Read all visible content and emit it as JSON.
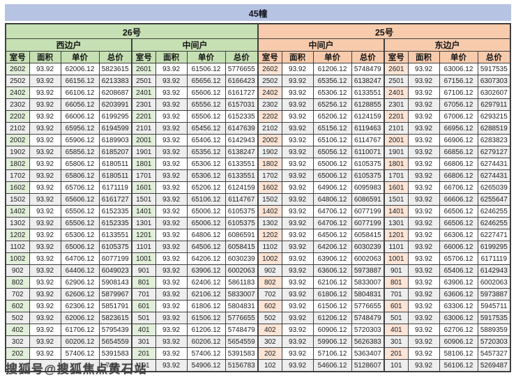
{
  "title": "45幢",
  "sections": [
    {
      "label": "26号",
      "color": "#c6e0b4",
      "room_cell_color": "#e2efda"
    },
    {
      "label": "25号",
      "color": "#f8cbad",
      "room_cell_color": "#fce4d6"
    }
  ],
  "subheaders": [
    {
      "label": "西边户",
      "section": "26号"
    },
    {
      "label": "中间户",
      "section": "26号"
    },
    {
      "label": "中间户",
      "section": "25号"
    },
    {
      "label": "东边户",
      "section": "25号"
    }
  ],
  "column_headers": [
    "室号",
    "面积",
    "单价",
    "总价"
  ],
  "watermark": "搜狐号@搜狐焦点黄石站",
  "title_bar_color": "#b7c3e3",
  "stripe_color": "#eeeeee",
  "rows": [
    [
      [
        "2602",
        "93.92",
        "62006.12",
        "5823615"
      ],
      [
        "2601",
        "93.92",
        "61506.12",
        "5776655"
      ],
      [
        "2602",
        "93.92",
        "61206.12",
        "5748479"
      ],
      [
        "2601",
        "93.92",
        "63006.12",
        "5917535"
      ]
    ],
    [
      [
        "2502",
        "93.92",
        "66156.12",
        "6213383"
      ],
      [
        "2501",
        "93.92",
        "65656.12",
        "6166423"
      ],
      [
        "2502",
        "93.92",
        "65356.12",
        "6138247"
      ],
      [
        "2501",
        "93.92",
        "67156.12",
        "6307303"
      ]
    ],
    [
      [
        "2402",
        "93.92",
        "66106.12",
        "6208687"
      ],
      [
        "2401",
        "93.92",
        "65606.12",
        "6161727"
      ],
      [
        "2402",
        "93.92",
        "65306.12",
        "6133551"
      ],
      [
        "2401",
        "93.92",
        "67106.12",
        "6302607"
      ]
    ],
    [
      [
        "2302",
        "93.92",
        "66056.12",
        "6203991"
      ],
      [
        "2301",
        "93.92",
        "65556.12",
        "6157031"
      ],
      [
        "2302",
        "93.92",
        "65256.12",
        "6128855"
      ],
      [
        "2301",
        "93.92",
        "67056.12",
        "6297911"
      ]
    ],
    [
      [
        "2202",
        "93.92",
        "66006.12",
        "6199295"
      ],
      [
        "2201",
        "93.92",
        "65506.12",
        "6152335"
      ],
      [
        "2202",
        "93.92",
        "65206.12",
        "6124159"
      ],
      [
        "2201",
        "93.92",
        "67006.12",
        "6293215"
      ]
    ],
    [
      [
        "2102",
        "93.92",
        "65956.12",
        "6194599"
      ],
      [
        "2101",
        "93.92",
        "65456.12",
        "6147639"
      ],
      [
        "2102",
        "93.92",
        "65156.12",
        "6119463"
      ],
      [
        "2101",
        "93.92",
        "66956.12",
        "6288519"
      ]
    ],
    [
      [
        "2002",
        "93.92",
        "65906.12",
        "6189903"
      ],
      [
        "2001",
        "93.92",
        "65406.12",
        "6142943"
      ],
      [
        "2002",
        "93.92",
        "65106.12",
        "6114767"
      ],
      [
        "2001",
        "93.92",
        "66906.12",
        "6283823"
      ]
    ],
    [
      [
        "1902",
        "93.92",
        "65856.12",
        "6185207"
      ],
      [
        "1901",
        "93.92",
        "65356.12",
        "6138247"
      ],
      [
        "1902",
        "93.92",
        "65056.12",
        "6110071"
      ],
      [
        "1901",
        "93.92",
        "66856.12",
        "6279127"
      ]
    ],
    [
      [
        "1802",
        "93.92",
        "65806.12",
        "6180511"
      ],
      [
        "1801",
        "93.92",
        "65306.12",
        "6133551"
      ],
      [
        "1802",
        "93.92",
        "65006.12",
        "6105375"
      ],
      [
        "1801",
        "93.92",
        "66806.12",
        "6274431"
      ]
    ],
    [
      [
        "1702",
        "93.92",
        "65806.12",
        "6180511"
      ],
      [
        "1701",
        "93.92",
        "65306.12",
        "6133551"
      ],
      [
        "1702",
        "93.92",
        "65006.12",
        "6105375"
      ],
      [
        "1701",
        "93.92",
        "66806.12",
        "6274431"
      ]
    ],
    [
      [
        "1602",
        "93.92",
        "65706.12",
        "6171119"
      ],
      [
        "1601",
        "93.92",
        "65206.12",
        "6124159"
      ],
      [
        "1602",
        "93.92",
        "64906.12",
        "6095983"
      ],
      [
        "1601",
        "93.92",
        "66706.12",
        "6265039"
      ]
    ],
    [
      [
        "1502",
        "93.92",
        "65606.12",
        "6161727"
      ],
      [
        "1501",
        "93.92",
        "65106.12",
        "6114767"
      ],
      [
        "1502",
        "93.92",
        "64806.12",
        "6086591"
      ],
      [
        "1501",
        "93.92",
        "66606.12",
        "6255647"
      ]
    ],
    [
      [
        "1402",
        "93.92",
        "65506.12",
        "6152335"
      ],
      [
        "1401",
        "93.92",
        "65006.12",
        "6105375"
      ],
      [
        "1402",
        "93.92",
        "64706.12",
        "6077199"
      ],
      [
        "1401",
        "93.92",
        "66506.12",
        "6246255"
      ]
    ],
    [
      [
        "1302",
        "93.92",
        "65506.12",
        "6152335"
      ],
      [
        "1301",
        "93.92",
        "65006.12",
        "6105375"
      ],
      [
        "1302",
        "93.92",
        "64706.12",
        "6077199"
      ],
      [
        "1301",
        "93.92",
        "66506.12",
        "6246255"
      ]
    ],
    [
      [
        "1202",
        "93.92",
        "65306.12",
        "6133551"
      ],
      [
        "1201",
        "93.92",
        "64806.12",
        "6086591"
      ],
      [
        "1202",
        "93.92",
        "64506.12",
        "6058415"
      ],
      [
        "1201",
        "93.92",
        "66306.12",
        "6227471"
      ]
    ],
    [
      [
        "1102",
        "93.92",
        "65006.12",
        "6105375"
      ],
      [
        "1101",
        "93.92",
        "64506.12",
        "6058415"
      ],
      [
        "1102",
        "93.92",
        "64206.12",
        "6030239"
      ],
      [
        "1101",
        "93.92",
        "66006.12",
        "6199295"
      ]
    ],
    [
      [
        "1002",
        "93.92",
        "64706.12",
        "6077199"
      ],
      [
        "1001",
        "93.92",
        "64206.12",
        "6030239"
      ],
      [
        "1002",
        "93.92",
        "63906.12",
        "6002063"
      ],
      [
        "1001",
        "93.92",
        "65706.12",
        "6171119"
      ]
    ],
    [
      [
        "902",
        "93.92",
        "64406.12",
        "6049023"
      ],
      [
        "901",
        "93.92",
        "63906.12",
        "6002063"
      ],
      [
        "902",
        "93.92",
        "63606.12",
        "5973887"
      ],
      [
        "901",
        "93.92",
        "65406.12",
        "6142943"
      ]
    ],
    [
      [
        "802",
        "93.92",
        "62906.12",
        "5908143"
      ],
      [
        "801",
        "93.92",
        "62406.12",
        "5861183"
      ],
      [
        "802",
        "93.92",
        "62106.12",
        "5833007"
      ],
      [
        "801",
        "93.92",
        "63906.12",
        "6002063"
      ]
    ],
    [
      [
        "702",
        "93.92",
        "62606.12",
        "5879967"
      ],
      [
        "701",
        "93.92",
        "62106.12",
        "5833007"
      ],
      [
        "702",
        "93.92",
        "61806.12",
        "5804831"
      ],
      [
        "701",
        "93.92",
        "63606.12",
        "5973887"
      ]
    ],
    [
      [
        "602",
        "93.92",
        "62306.12",
        "5851791"
      ],
      [
        "601",
        "93.92",
        "61806.12",
        "5804831"
      ],
      [
        "602",
        "93.92",
        "61506.12",
        "5776655"
      ],
      [
        "601",
        "93.92",
        "63306.12",
        "5945711"
      ]
    ],
    [
      [
        "502",
        "93.92",
        "62006.12",
        "5823615"
      ],
      [
        "501",
        "93.92",
        "61506.12",
        "5776655"
      ],
      [
        "502",
        "93.92",
        "61206.12",
        "5748479"
      ],
      [
        "501",
        "93.92",
        "63006.12",
        "5917535"
      ]
    ],
    [
      [
        "402",
        "93.92",
        "61706.12",
        "5795439"
      ],
      [
        "401",
        "93.92",
        "61206.12",
        "5748479"
      ],
      [
        "402",
        "93.92",
        "60906.12",
        "5720303"
      ],
      [
        "401",
        "93.92",
        "62706.12",
        "5889359"
      ]
    ],
    [
      [
        "302",
        "93.92",
        "60206.12",
        "5654559"
      ],
      [
        "301",
        "93.92",
        "60206.12",
        "5654559"
      ],
      [
        "302",
        "93.92",
        "59906.12",
        "5626383"
      ],
      [
        "301",
        "93.92",
        "60906.12",
        "5720303"
      ]
    ],
    [
      [
        "202",
        "93.92",
        "57406.12",
        "5391583"
      ],
      [
        "201",
        "93.92",
        "57406.12",
        "5391583"
      ],
      [
        "202",
        "93.92",
        "57106.12",
        "5363407"
      ],
      [
        "201",
        "93.92",
        "58106.12",
        "5457327"
      ]
    ],
    [
      [
        "",
        "",
        "",
        "743"
      ],
      [
        "101",
        "93.92",
        "54906.12",
        "5156783"
      ],
      [
        "102",
        "93.92",
        "54606.12",
        "5128607"
      ],
      [
        "101",
        "93.92",
        "56106.12",
        "5269487"
      ]
    ]
  ],
  "covered_row_note": "last row of first group is obscured by watermark; only '743' visible"
}
